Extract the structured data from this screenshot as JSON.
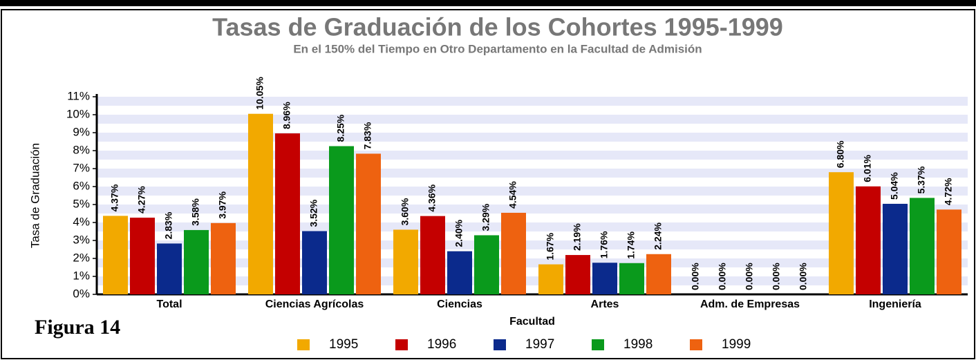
{
  "chart_data": {
    "type": "bar",
    "title": "Tasas de Graduación de los Cohortes 1995-1999",
    "subtitle": "En el 150% del Tiempo en Otro Departamento en la Facultad de Admisión",
    "x_label": "Facultad",
    "y_label": "Tasa de Graduación",
    "annotation": "Figura 14",
    "categories": [
      "Total",
      "Ciencias Agrícolas",
      "Ciencias",
      "Artes",
      "Adm. de Empresas",
      "Ingeniería"
    ],
    "series": [
      {
        "name": "1995",
        "color": "#f2a900",
        "values": [
          4.37,
          10.05,
          3.6,
          1.67,
          0.0,
          6.8
        ],
        "value_labels": [
          "4.37%",
          "10.05%",
          "3.60%",
          "1.67%",
          "0.00%",
          "6.80%"
        ]
      },
      {
        "name": "1996",
        "color": "#c40000",
        "values": [
          4.27,
          8.96,
          4.36,
          2.19,
          0.0,
          6.01
        ],
        "value_labels": [
          "4.27%",
          "8.96%",
          "4.36%",
          "2.19%",
          "0.00%",
          "6.01%"
        ]
      },
      {
        "name": "1997",
        "color": "#0b2a8c",
        "values": [
          2.83,
          3.52,
          2.4,
          1.76,
          0.0,
          5.04
        ],
        "value_labels": [
          "2.83%",
          "3.52%",
          "2.40%",
          "1.76%",
          "0.00%",
          "5.04%"
        ]
      },
      {
        "name": "1998",
        "color": "#0a9a1c",
        "values": [
          3.58,
          8.25,
          3.29,
          1.74,
          0.0,
          5.37
        ],
        "value_labels": [
          "3.58%",
          "8.25%",
          "3.29%",
          "1.74%",
          "0.00%",
          "5.37%"
        ]
      },
      {
        "name": "1999",
        "color": "#ee6210",
        "values": [
          3.97,
          7.83,
          4.54,
          2.24,
          0.0,
          4.72
        ],
        "value_labels": [
          "3.97%",
          "7.83%",
          "4.54%",
          "2.24%",
          "0.00%",
          "4.72%"
        ]
      }
    ],
    "ylim": [
      0,
      11
    ],
    "yticks": [
      {
        "value": 0,
        "label": "0%"
      },
      {
        "value": 1,
        "label": "1%"
      },
      {
        "value": 2,
        "label": "2%"
      },
      {
        "value": 3,
        "label": "3%"
      },
      {
        "value": 4,
        "label": "4%"
      },
      {
        "value": 5,
        "label": "5%"
      },
      {
        "value": 6,
        "label": "6%"
      },
      {
        "value": 7,
        "label": "7%"
      },
      {
        "value": 8,
        "label": "8%"
      },
      {
        "value": 9,
        "label": "9%"
      },
      {
        "value": 10,
        "label": "10%"
      },
      {
        "value": 11,
        "label": "11%"
      }
    ],
    "grid": true,
    "legend": "bottom"
  }
}
